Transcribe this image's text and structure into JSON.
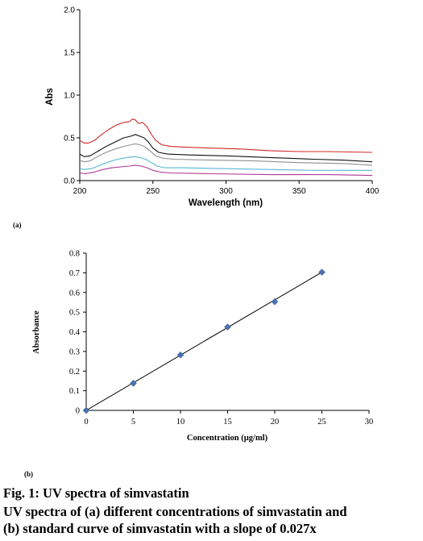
{
  "panels": {
    "a_label": "(a)",
    "b_label": "(b)"
  },
  "caption": {
    "title": "Fig. 1: UV spectra of simvastatin",
    "line1": "UV spectra of (a) different concentrations of simvastatin and",
    "line2": "(b) standard curve of simvastatin with a slope of 0.027x"
  },
  "chart_data": [
    {
      "type": "line",
      "panel": "a",
      "title": "",
      "xlabel": "Wavelength (nm)",
      "ylabel": "Abs",
      "xlim": [
        200,
        400
      ],
      "ylim": [
        0,
        2.0
      ],
      "x_ticks": [
        "200",
        "250",
        "300",
        "350",
        "400"
      ],
      "y_ticks": [
        "0.0",
        "0.5",
        "1.0",
        "1.5",
        "2.0"
      ],
      "grid": false,
      "legend": "none",
      "series": [
        {
          "color": "#d02828",
          "points": [
            [
              200,
              0.47
            ],
            [
              203,
              0.44
            ],
            [
              206,
              0.44
            ],
            [
              210,
              0.47
            ],
            [
              215,
              0.54
            ],
            [
              220,
              0.6
            ],
            [
              225,
              0.65
            ],
            [
              230,
              0.68
            ],
            [
              234,
              0.69
            ],
            [
              236,
              0.72
            ],
            [
              238,
              0.71
            ],
            [
              240,
              0.67
            ],
            [
              243,
              0.68
            ],
            [
              246,
              0.63
            ],
            [
              249,
              0.54
            ],
            [
              252,
              0.47
            ],
            [
              256,
              0.42
            ],
            [
              262,
              0.4
            ],
            [
              275,
              0.39
            ],
            [
              290,
              0.38
            ],
            [
              310,
              0.37
            ],
            [
              330,
              0.35
            ],
            [
              350,
              0.34
            ],
            [
              370,
              0.34
            ],
            [
              400,
              0.33
            ]
          ]
        },
        {
          "color": "#111111",
          "points": [
            [
              200,
              0.31
            ],
            [
              203,
              0.28
            ],
            [
              207,
              0.29
            ],
            [
              212,
              0.34
            ],
            [
              218,
              0.4
            ],
            [
              224,
              0.45
            ],
            [
              230,
              0.5
            ],
            [
              235,
              0.52
            ],
            [
              238,
              0.54
            ],
            [
              241,
              0.52
            ],
            [
              244,
              0.5
            ],
            [
              247,
              0.45
            ],
            [
              250,
              0.38
            ],
            [
              254,
              0.33
            ],
            [
              260,
              0.31
            ],
            [
              275,
              0.3
            ],
            [
              300,
              0.29
            ],
            [
              330,
              0.27
            ],
            [
              360,
              0.25
            ],
            [
              380,
              0.24
            ],
            [
              400,
              0.22
            ]
          ]
        },
        {
          "color": "#909090",
          "points": [
            [
              200,
              0.24
            ],
            [
              203,
              0.22
            ],
            [
              207,
              0.23
            ],
            [
              212,
              0.28
            ],
            [
              218,
              0.33
            ],
            [
              224,
              0.37
            ],
            [
              230,
              0.4
            ],
            [
              235,
              0.42
            ],
            [
              238,
              0.43
            ],
            [
              241,
              0.42
            ],
            [
              244,
              0.4
            ],
            [
              248,
              0.35
            ],
            [
              252,
              0.29
            ],
            [
              257,
              0.26
            ],
            [
              265,
              0.25
            ],
            [
              290,
              0.24
            ],
            [
              320,
              0.23
            ],
            [
              350,
              0.21
            ],
            [
              380,
              0.2
            ],
            [
              400,
              0.18
            ]
          ]
        },
        {
          "color": "#59b6d2",
          "points": [
            [
              200,
              0.14
            ],
            [
              203,
              0.13
            ],
            [
              208,
              0.14
            ],
            [
              214,
              0.18
            ],
            [
              220,
              0.22
            ],
            [
              226,
              0.25
            ],
            [
              232,
              0.27
            ],
            [
              237,
              0.28
            ],
            [
              241,
              0.27
            ],
            [
              245,
              0.25
            ],
            [
              249,
              0.21
            ],
            [
              253,
              0.17
            ],
            [
              258,
              0.15
            ],
            [
              270,
              0.15
            ],
            [
              300,
              0.14
            ],
            [
              330,
              0.13
            ],
            [
              360,
              0.12
            ],
            [
              400,
              0.12
            ]
          ]
        },
        {
          "color": "#b03896",
          "points": [
            [
              200,
              0.09
            ],
            [
              204,
              0.08
            ],
            [
              210,
              0.1
            ],
            [
              216,
              0.13
            ],
            [
              222,
              0.15
            ],
            [
              228,
              0.16
            ],
            [
              234,
              0.17
            ],
            [
              238,
              0.18
            ],
            [
              242,
              0.17
            ],
            [
              246,
              0.15
            ],
            [
              250,
              0.12
            ],
            [
              255,
              0.1
            ],
            [
              262,
              0.09
            ],
            [
              290,
              0.08
            ],
            [
              330,
              0.07
            ],
            [
              370,
              0.07
            ],
            [
              400,
              0.06
            ]
          ]
        }
      ]
    },
    {
      "type": "scatter",
      "panel": "b",
      "title": "",
      "xlabel": "Concentration (µg/ml)",
      "ylabel": "Absorbance",
      "xlim": [
        0,
        30
      ],
      "ylim": [
        0,
        0.8
      ],
      "x_ticks": [
        "0",
        "5",
        "10",
        "15",
        "20",
        "25",
        "30"
      ],
      "y_ticks": [
        "0",
        "0.1",
        "0.2",
        "0.3",
        "0.4",
        "0.5",
        "0.6",
        "0.7",
        "0.8"
      ],
      "grid": false,
      "legend": "none",
      "marker_color": "#4a72b0",
      "x": [
        0,
        5,
        10,
        15,
        20,
        25
      ],
      "y": [
        0,
        0.138,
        0.282,
        0.424,
        0.553,
        0.703
      ],
      "trendline": [
        [
          0,
          0
        ],
        [
          25,
          0.703
        ]
      ]
    }
  ]
}
